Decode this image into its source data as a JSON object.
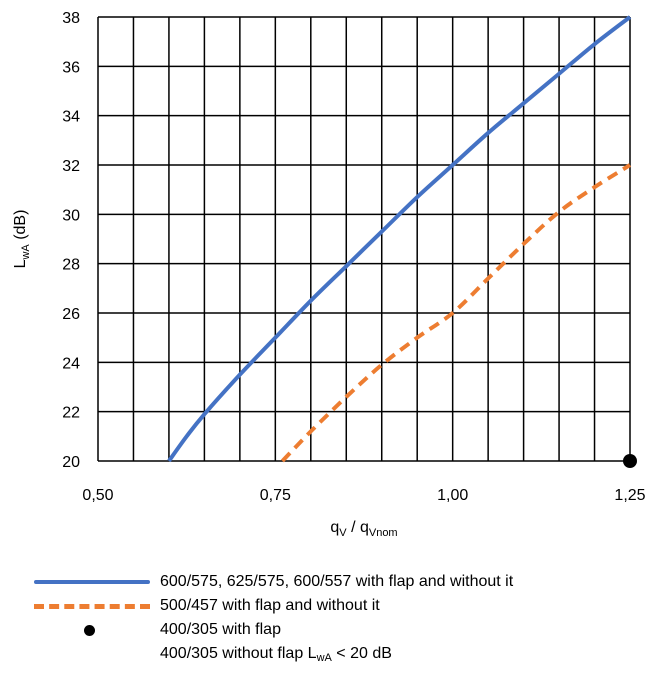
{
  "chart_data": {
    "type": "line",
    "xlabel_main": "q",
    "xlabel_sub1": "V",
    "xlabel_mid": " / q",
    "xlabel_sub2": "Vnom",
    "ylabel_main": "L",
    "ylabel_sub": "wA",
    "ylabel_unit": " (dB)",
    "xlim": [
      0.5,
      1.25
    ],
    "ylim": [
      20,
      38
    ],
    "x_ticks": [
      0.5,
      0.75,
      1.0,
      1.25
    ],
    "x_tick_labels": [
      "0,50",
      "0,75",
      "1,00",
      "1,25"
    ],
    "x_grid_step": 0.05,
    "y_ticks": [
      20,
      22,
      24,
      26,
      28,
      30,
      32,
      34,
      36,
      38
    ],
    "y_tick_labels": [
      "20",
      "22",
      "24",
      "26",
      "28",
      "30",
      "32",
      "34",
      "36",
      "38"
    ],
    "grid": true,
    "series": [
      {
        "name": "600/575, 625/575, 600/557 with flap and without it",
        "color": "#4472C4",
        "style": "solid",
        "x": [
          0.6,
          0.625,
          0.65,
          0.7,
          0.75,
          0.8,
          0.85,
          0.9,
          0.95,
          1.0,
          1.05,
          1.1,
          1.15,
          1.2,
          1.25
        ],
        "y": [
          20.0,
          21.0,
          21.9,
          23.5,
          25.0,
          26.5,
          27.9,
          29.3,
          30.7,
          32.0,
          33.3,
          34.5,
          35.7,
          36.9,
          38.0
        ]
      },
      {
        "name": "500/457 with flap and without it",
        "color": "#ED7D31",
        "style": "dashed",
        "x": [
          0.76,
          0.8,
          0.85,
          0.9,
          0.95,
          1.0,
          1.05,
          1.1,
          1.15,
          1.2,
          1.25
        ],
        "y": [
          20.0,
          21.2,
          22.6,
          23.9,
          25.0,
          26.0,
          27.4,
          28.8,
          30.1,
          31.1,
          32.0
        ]
      },
      {
        "name": "400/305 with flap",
        "color": "#000000",
        "style": "marker",
        "x": [
          1.25
        ],
        "y": [
          20.0
        ]
      }
    ],
    "legend": [
      {
        "key": "solid",
        "color": "#4472C4",
        "text": "600/575, 625/575, 600/557 with flap and without it"
      },
      {
        "key": "dashed",
        "color": "#ED7D31",
        "text": "500/457 with flap and without it"
      },
      {
        "key": "dot",
        "color": "#000000",
        "text": "400/305 with flap"
      }
    ],
    "legend_note": {
      "before": "400/305 without flap L",
      "sub": "wA",
      "after": " < 20 dB"
    },
    "legend_position": "bottom"
  }
}
